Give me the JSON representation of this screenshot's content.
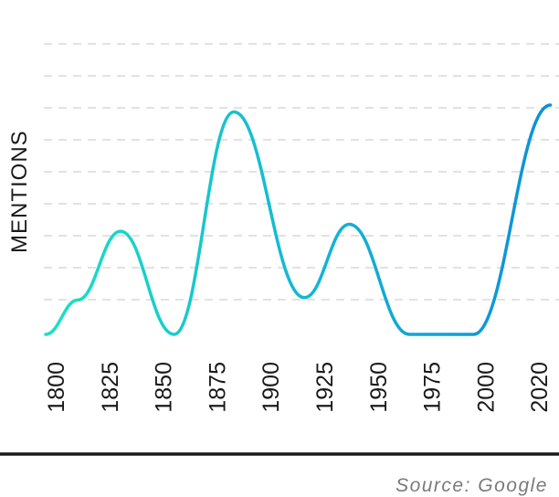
{
  "chart_data": {
    "type": "line",
    "ylabel": "MENTIONS",
    "source": "Source: Google",
    "x_ticks": [
      "1800",
      "1825",
      "1850",
      "1875",
      "1900",
      "1925",
      "1950",
      "1975",
      "2000",
      "2020"
    ],
    "series": [
      {
        "x": [
          1800,
          1815,
          1835,
          1860,
          1888,
          1921,
          1942,
          1970,
          2000,
          2036
        ],
        "values": [
          0,
          15,
          45,
          0,
          97,
          16,
          48,
          0,
          0,
          100
        ]
      }
    ],
    "ylim": [
      0,
      100
    ],
    "grid": true,
    "colors": {
      "start": "#1de0c2",
      "mid": "#12b3d6",
      "end": "#0c8fd8",
      "axis": "#1a1a1a",
      "grid": "#d9d9d9"
    }
  }
}
